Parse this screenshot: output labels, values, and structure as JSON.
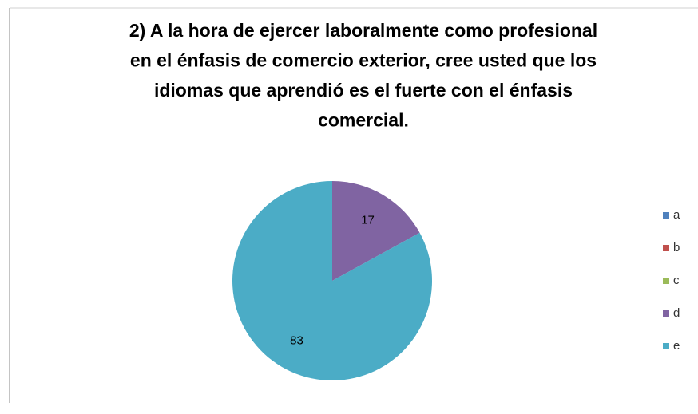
{
  "chart_data": {
    "type": "pie",
    "title": [
      "2) A la hora de ejercer laboralmente como profesional",
      "en el énfasis de comercio exterior, cree usted que los",
      "idiomas que aprendió  es el fuerte con el énfasis",
      "comercial."
    ],
    "categories": [
      "a",
      "b",
      "c",
      "d",
      "e"
    ],
    "values": [
      0,
      0,
      0,
      17,
      83
    ],
    "colors": [
      "#4f81bd",
      "#c0504d",
      "#9bbb59",
      "#8064a2",
      "#4bacc6"
    ],
    "legend": "right"
  }
}
